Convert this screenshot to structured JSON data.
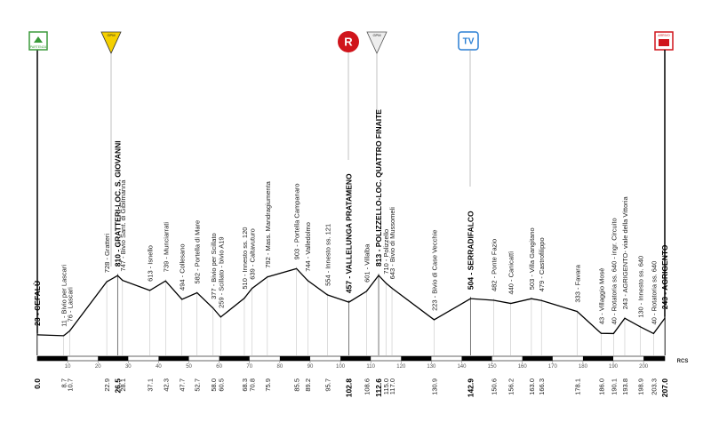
{
  "chart_data": {
    "type": "line",
    "x": [
      0.0,
      8.7,
      10.7,
      22.9,
      26.5,
      28.1,
      37.1,
      42.3,
      47.7,
      52.7,
      58.0,
      60.5,
      68.3,
      70.8,
      75.9,
      85.5,
      89.2,
      95.7,
      102.8,
      108.6,
      112.6,
      115.0,
      117.0,
      130.9,
      142.9,
      150.6,
      156.2,
      163.0,
      166.3,
      178.1,
      186.0,
      190.1,
      193.8,
      198.9,
      203.3,
      207.0
    ],
    "x_labels": [
      "0.0",
      "8.7",
      "10.7",
      "22.9",
      "26.5",
      "28.1",
      "37.1",
      "42.3",
      "47.7",
      "52.7",
      "58.0",
      "60.5",
      "68.3",
      "70.8",
      "75.9",
      "85.5",
      "89.2",
      "95.7",
      "102.8",
      "108.6",
      "112.6",
      "115.0",
      "117.0",
      "130.9",
      "142.9",
      "150.6",
      "156.2",
      "163.0",
      "166.3",
      "178.1",
      "186.0",
      "190.1",
      "193.8",
      "198.9",
      "203.3",
      "207.0"
    ],
    "values": [
      23,
      11,
      76,
      728,
      810,
      747,
      613,
      739,
      494,
      582,
      377,
      259,
      510,
      639,
      792,
      903,
      744,
      554,
      457,
      601,
      813,
      710,
      643,
      223,
      504,
      482,
      440,
      503,
      479,
      333,
      43,
      40,
      243,
      130,
      40,
      243
    ],
    "point_labels": [
      "23 - CEFALÙ",
      "11 - Bivio per Lascari",
      "76 - Lascari",
      "728 - Gratteri",
      "810 - GRATTERI-LOC. S. GIOVANNI",
      "747 - Bivio Sant. di Gibilmanna",
      "613 - Isnello",
      "739 - Munciarrati",
      "494 - Collesano",
      "582 - Portella di Mare",
      "377 - Bivio per Scillato",
      "259 - Scillato - bivio A19",
      "510 - Innesto ss. 120",
      "639 - Caltavuturo",
      "792 - Mass. Mandragiumenta",
      "903 - Portella Campanaro",
      "744 - Valledolmo",
      "554 - Innesto ss. 121",
      "457 - VALLELUNGA PRATAMENO",
      "601 - Villalba",
      "813 - POLIZZELLO-LOC. QUATTRO FINAITE",
      "710 - Polizzello",
      "643 - Bivio di Mussomeli",
      "223 - Bivio di Case Vecchie",
      "504 - SERRADIFALCO",
      "482 - Ponte Fazio",
      "440 - Canicattì",
      "503 - Villa Gangitano",
      "479 - Castrofilippo",
      "333 - Favara",
      "43 - Villaggio Mosè",
      "40 - Rotatoria ss. 640 - ingr. Circuito",
      "243 - AGRIGENTO- viale della Vittoria",
      "130 - Innesto ss. 640",
      "40 - Rotatoria ss. 640",
      "243 - AGRIGENTO"
    ],
    "highlight": [
      0,
      4,
      18,
      20,
      24,
      35
    ],
    "color": "#000000",
    "xlim": [
      0,
      207
    ],
    "ylim": [
      -250,
      4000
    ],
    "xticks": [
      10,
      20,
      30,
      40,
      50,
      60,
      70,
      80,
      90,
      100,
      110,
      120,
      130,
      140,
      150,
      160,
      170,
      180,
      190,
      200
    ]
  },
  "icons": {
    "start": "PARTENZA",
    "kom": "GPM",
    "kom2": "GPM",
    "refuel": "R",
    "tv": "TV",
    "finish": "ARRIVO",
    "brand": "RCS"
  }
}
